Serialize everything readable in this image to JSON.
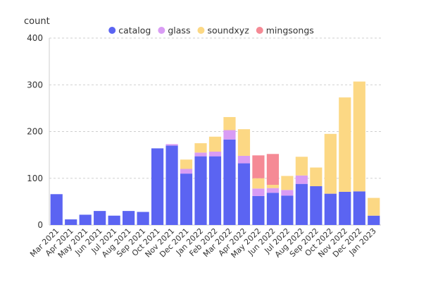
{
  "chart_data": {
    "type": "bar",
    "stacked": true,
    "title": "",
    "xlabel": "",
    "ylabel": "count",
    "ylim": [
      0,
      400
    ],
    "yticks": [
      0,
      100,
      200,
      300,
      400
    ],
    "grid": true,
    "legend_position": "top",
    "categories": [
      "Mar 2021",
      "Apr 2021",
      "May 2021",
      "Jun 2021",
      "Jul 2021",
      "Aug 2021",
      "Sep 2021",
      "Oct 2021",
      "Nov 2021",
      "Dec 2021",
      "Jan 2022",
      "Feb 2022",
      "Mar 2022",
      "Apr 2022",
      "May 2022",
      "Jun 2022",
      "Jul 2022",
      "Aug 2022",
      "Sep 2022",
      "Oct 2022",
      "Nov 2022",
      "Dec 2022",
      "Jan 2023"
    ],
    "series": [
      {
        "name": "catalog",
        "color": "#5b64f2",
        "values": [
          66,
          12,
          22,
          30,
          20,
          30,
          28,
          164,
          170,
          110,
          147,
          147,
          183,
          132,
          62,
          69,
          63,
          88,
          83,
          67,
          71,
          72,
          20
        ]
      },
      {
        "name": "glass",
        "color": "#d99cf4",
        "values": [
          0,
          0,
          0,
          0,
          0,
          0,
          0,
          0,
          3,
          10,
          8,
          10,
          20,
          16,
          16,
          10,
          12,
          18,
          0,
          0,
          0,
          0,
          0
        ]
      },
      {
        "name": "soundxyz",
        "color": "#fcd884",
        "values": [
          0,
          0,
          0,
          0,
          0,
          0,
          0,
          0,
          0,
          20,
          20,
          32,
          28,
          57,
          22,
          7,
          30,
          40,
          40,
          128,
          202,
          235,
          38
        ]
      },
      {
        "name": "mingsongs",
        "color": "#f58a95",
        "values": [
          0,
          0,
          0,
          0,
          0,
          0,
          0,
          0,
          0,
          0,
          0,
          0,
          0,
          0,
          49,
          66,
          0,
          0,
          0,
          0,
          0,
          0,
          0
        ]
      }
    ]
  }
}
